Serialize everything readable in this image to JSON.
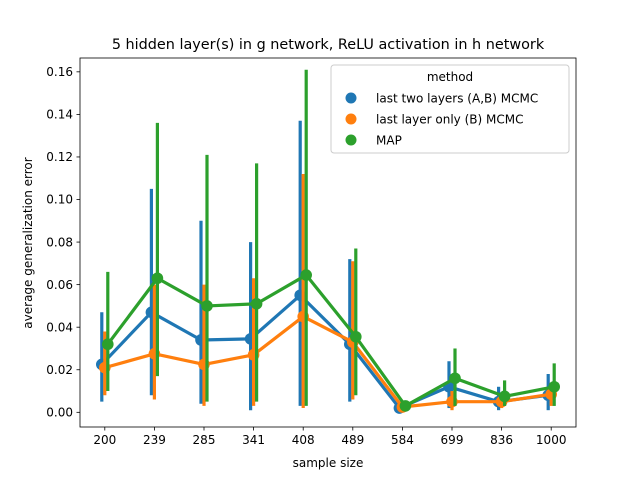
{
  "chart_data": {
    "type": "line",
    "title": "5 hidden layer(s) in g network, ReLU activation in h network",
    "xlabel": "sample size",
    "ylabel": "average generalization error",
    "categories": [
      "200",
      "239",
      "285",
      "341",
      "408",
      "489",
      "584",
      "699",
      "836",
      "1000"
    ],
    "ylim": [
      -0.0069,
      0.1665
    ],
    "yticks": [
      "0.00",
      "0.02",
      "0.04",
      "0.06",
      "0.08",
      "0.10",
      "0.12",
      "0.14",
      "0.16"
    ],
    "grid": false,
    "legend": {
      "title": "method",
      "placement": "top-right"
    },
    "series": [
      {
        "name": "last two layers (A,B) MCMC",
        "color": "#1f77b4",
        "values": [
          0.0225,
          0.047,
          0.034,
          0.0345,
          0.055,
          0.032,
          0.002,
          0.012,
          0.005,
          0.008
        ],
        "err_low": [
          0.005,
          0.008,
          0.004,
          0.001,
          0.003,
          0.005,
          0.001,
          0.002,
          0.001,
          0.001
        ],
        "err_high": [
          0.047,
          0.105,
          0.09,
          0.08,
          0.137,
          0.072,
          0.004,
          0.024,
          0.012,
          0.018
        ]
      },
      {
        "name": "last layer only (B) MCMC",
        "color": "#ff7f0e",
        "values": [
          0.021,
          0.0275,
          0.0225,
          0.027,
          0.045,
          0.033,
          0.0025,
          0.005,
          0.005,
          0.0085
        ],
        "err_low": [
          0.008,
          0.006,
          0.003,
          0.003,
          0.002,
          0.006,
          0.001,
          0.001,
          0.002,
          0.003
        ],
        "err_high": [
          0.038,
          0.06,
          0.06,
          0.063,
          0.112,
          0.071,
          0.004,
          0.01,
          0.009,
          0.014
        ]
      },
      {
        "name": "MAP",
        "color": "#2ca02c",
        "values": [
          0.032,
          0.063,
          0.05,
          0.051,
          0.0645,
          0.0355,
          0.003,
          0.016,
          0.0075,
          0.012
        ],
        "err_low": [
          0.01,
          0.017,
          0.005,
          0.005,
          0.003,
          0.008,
          0.001,
          0.003,
          0.003,
          0.003
        ],
        "err_high": [
          0.066,
          0.136,
          0.121,
          0.117,
          0.161,
          0.077,
          0.004,
          0.03,
          0.015,
          0.023
        ]
      }
    ]
  }
}
